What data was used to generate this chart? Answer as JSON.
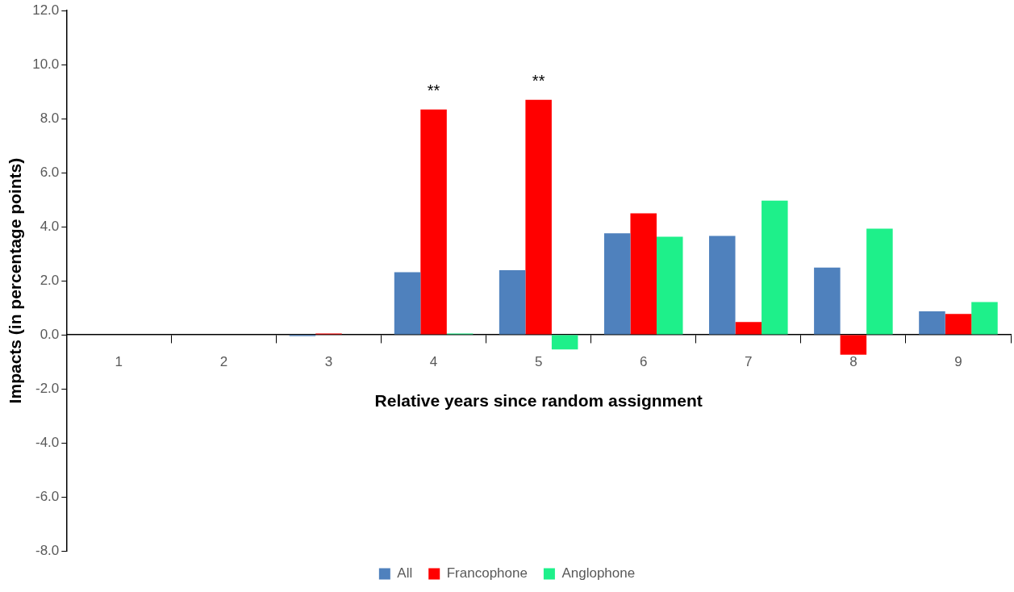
{
  "chart_data": {
    "type": "bar",
    "xlabel": "Relative years since random assignment",
    "ylabel": "Impacts (in percentage points)",
    "categories": [
      "1",
      "2",
      "3",
      "4",
      "5",
      "6",
      "7",
      "8",
      "9"
    ],
    "series": [
      {
        "name": "All",
        "color": "#4f81bd",
        "values": [
          0,
          0,
          -0.05,
          2.32,
          2.39,
          3.76,
          3.66,
          2.49,
          0.87
        ]
      },
      {
        "name": "Francophone",
        "color": "#ff0000",
        "values": [
          0,
          0,
          0.05,
          8.34,
          8.7,
          4.5,
          0.47,
          -0.74,
          0.77
        ]
      },
      {
        "name": "Anglophone",
        "color": "#1ef08a",
        "values": [
          0,
          0,
          0,
          0.05,
          -0.54,
          3.63,
          4.97,
          3.93,
          1.21
        ]
      }
    ],
    "ylim": [
      -8,
      12
    ],
    "yticks": [
      {
        "value": -8,
        "label": "-8.0"
      },
      {
        "value": -6,
        "label": "-6.0"
      },
      {
        "value": -4,
        "label": "-4.0"
      },
      {
        "value": -2,
        "label": "-2.0"
      },
      {
        "value": 0,
        "label": "0.0"
      },
      {
        "value": 2,
        "label": "2.0"
      },
      {
        "value": 4,
        "label": "4.0"
      },
      {
        "value": 6,
        "label": "6.0"
      },
      {
        "value": 8,
        "label": "8.0"
      },
      {
        "value": 10,
        "label": "10.0"
      },
      {
        "value": 12,
        "label": "12.0"
      }
    ],
    "annotations": [
      {
        "text": "**",
        "x": "4",
        "y": 8.34
      },
      {
        "text": "**",
        "x": "5",
        "y": 8.7
      }
    ],
    "grid": false,
    "legend": "bottom"
  }
}
